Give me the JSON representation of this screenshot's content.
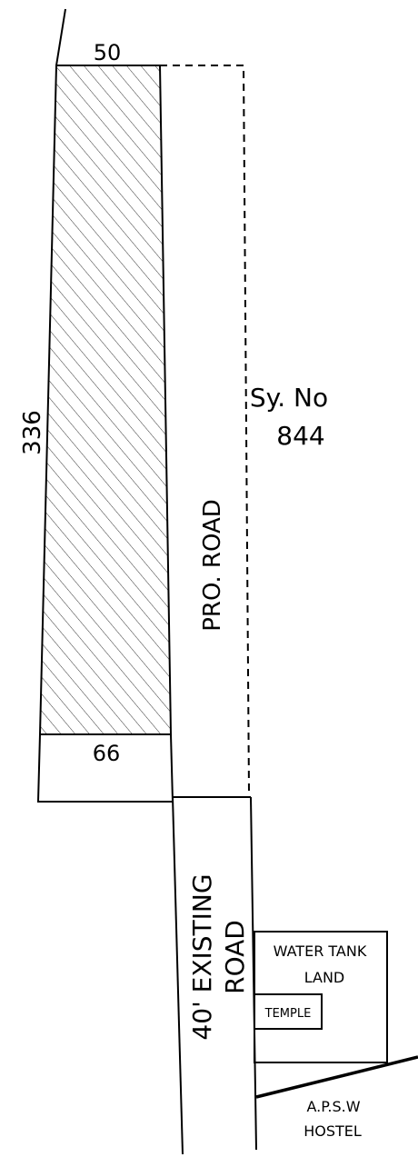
{
  "plan": {
    "dim_top": "50",
    "dim_bottom": "66",
    "dim_side": "336",
    "survey_line1": "Sy. No",
    "survey_line2": "844",
    "proposed_road": "PRO. ROAD",
    "existing_road_line1": "40' EXISTING",
    "existing_road_line2": "ROAD",
    "water_tank_line1": "WATER TANK",
    "water_tank_line2": "LAND",
    "temple": "TEMPLE",
    "hostel_line1": "A.P.S.W",
    "hostel_line2": "HOSTEL"
  },
  "colors": {
    "ink": "#000000",
    "background": "#ffffff"
  }
}
